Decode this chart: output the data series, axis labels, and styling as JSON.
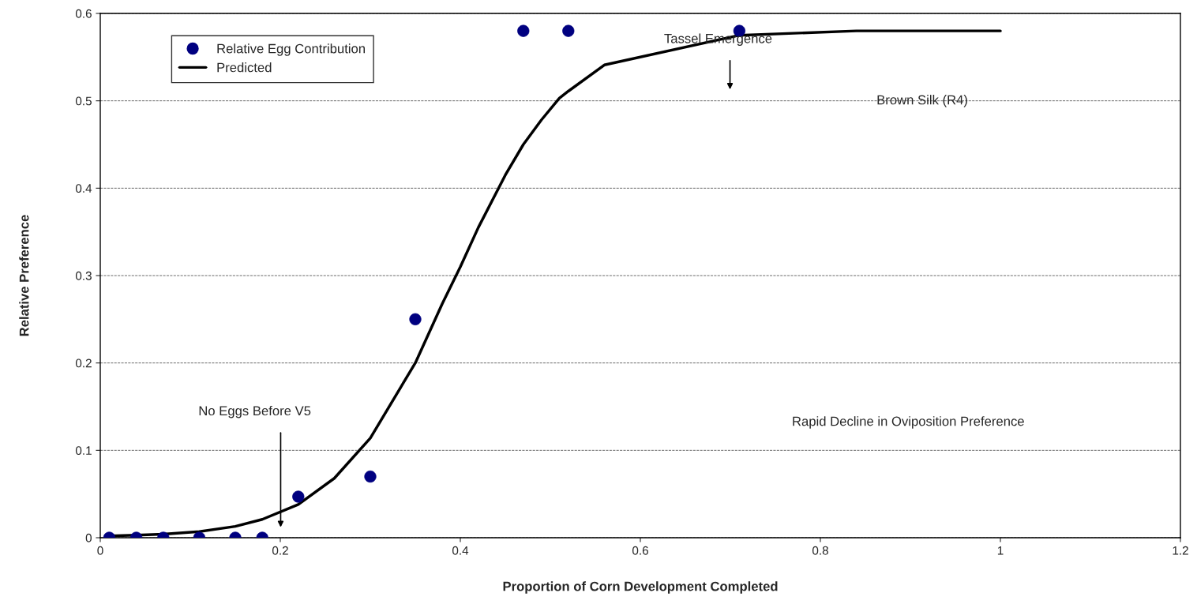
{
  "chart_data": {
    "type": "scatter",
    "xlabel": "Proportion of Corn Development Completed",
    "ylabel": "Relative Preference",
    "xlim": [
      0,
      1.2
    ],
    "xticks": [
      0,
      0.2,
      0.4,
      0.6,
      0.8,
      1,
      1.2
    ],
    "ylim": [
      0,
      0.6
    ],
    "yticks": [
      0,
      0.1,
      0.2,
      0.3,
      0.4,
      0.5,
      0.6
    ],
    "grid": "y",
    "legend": "top left",
    "series": [
      {
        "name": "Relative Egg Contribution",
        "marker": "circle",
        "color": "#000080",
        "x": [
          0.01,
          0.04,
          0.07,
          0.11,
          0.15,
          0.18,
          0.22,
          0.3,
          0.35,
          0.47,
          0.52,
          0.71
        ],
        "values": [
          0,
          0,
          0,
          0,
          0,
          0,
          0.047,
          0.07,
          0.25,
          0.58,
          0.58,
          0.58
        ]
      },
      {
        "name": "Predicted",
        "type": "line",
        "color": "#000000",
        "x": [
          0.01,
          0.04,
          0.07,
          0.11,
          0.15,
          0.18,
          0.22,
          0.26,
          0.3,
          0.35,
          0.38,
          0.4,
          0.42,
          0.45,
          0.47,
          0.49,
          0.51,
          0.52,
          0.56,
          0.71,
          0.84,
          1.0
        ],
        "values": [
          0.002,
          0.003,
          0.004,
          0.007,
          0.013,
          0.021,
          0.038,
          0.068,
          0.114,
          0.2,
          0.268,
          0.31,
          0.355,
          0.415,
          0.45,
          0.478,
          0.503,
          0.511,
          0.541,
          0.575,
          0.58,
          0.58
        ]
      }
    ],
    "annotations": [
      "No Eggs Before V5",
      "Tassel Emergence",
      "Brown Silk (R4)",
      "Rapid Decline in Oviposition Preference"
    ]
  }
}
